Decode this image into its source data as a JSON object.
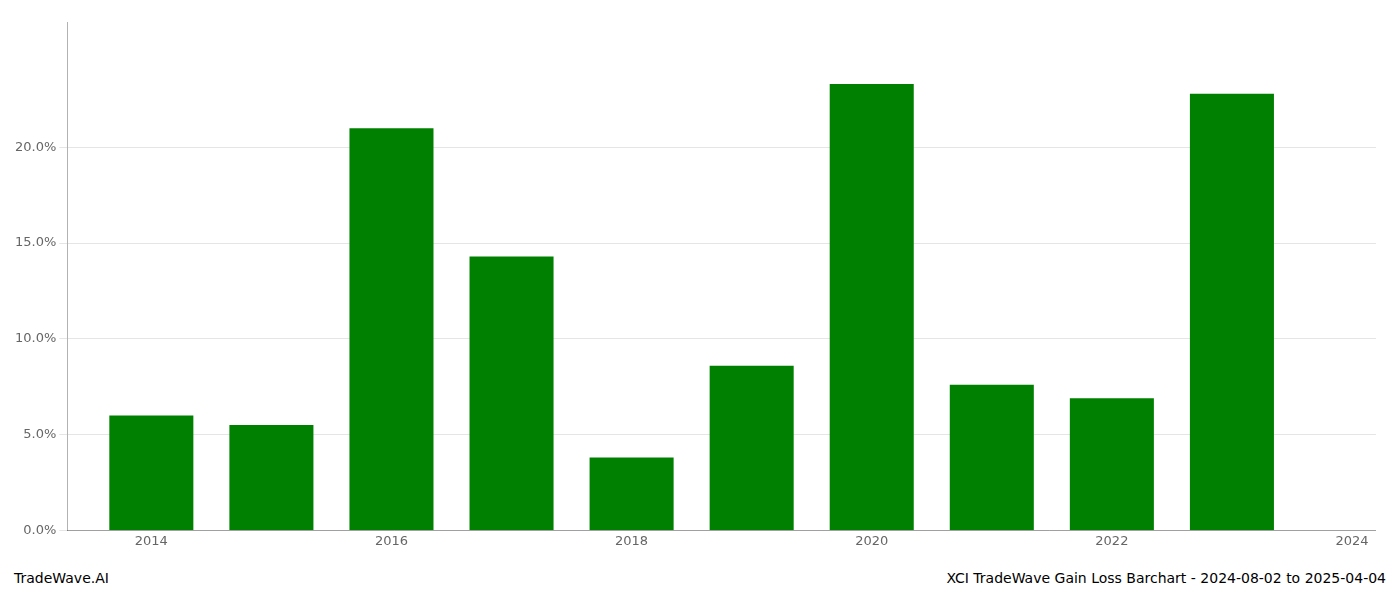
{
  "chart_data": {
    "type": "bar",
    "x": [
      2014,
      2015,
      2016,
      2017,
      2018,
      2019,
      2020,
      2021,
      2022,
      2023
    ],
    "values": [
      0.06,
      0.055,
      0.21,
      0.143,
      0.038,
      0.086,
      0.233,
      0.076,
      0.069,
      0.228
    ],
    "color": "#008000",
    "xlim": [
      2013.3,
      2024.2
    ],
    "xticks": [
      2014,
      2016,
      2018,
      2020,
      2022,
      2024
    ],
    "ylim": [
      0,
      0.265
    ],
    "yticks": [
      {
        "value": 0.0,
        "label": "0.0%"
      },
      {
        "value": 0.05,
        "label": "5.0%"
      },
      {
        "value": 0.1,
        "label": "10.0%"
      },
      {
        "value": 0.15,
        "label": "15.0%"
      },
      {
        "value": 0.2,
        "label": "20.0%"
      }
    ],
    "grid": true,
    "annotations": [
      "TradeWave.AI",
      "XCI TradeWave Gain Loss Barchart - 2024-08-02 to 2025-04-04"
    ]
  }
}
